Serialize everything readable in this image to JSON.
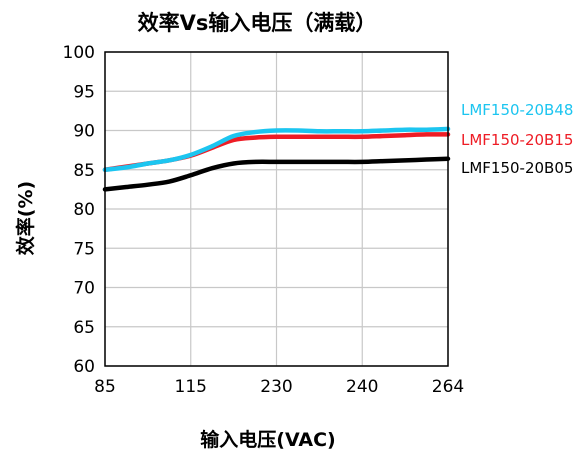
{
  "chart_data": {
    "type": "line",
    "title": "效率Vs输入电压（满载）",
    "xlabel": "输入电压(VAC)",
    "ylabel": "效率(%)",
    "categories": [
      "85",
      "115",
      "230",
      "240",
      "264"
    ],
    "ylim": [
      60,
      100
    ],
    "yticks": [
      60,
      65,
      70,
      75,
      80,
      85,
      90,
      95,
      100
    ],
    "grid": true,
    "legend_placement": "right",
    "series": [
      {
        "name": "LMF150-20B05",
        "color": "#000000",
        "x": [
          0,
          0.25,
          0.5,
          0.75,
          1,
          1.25,
          1.5,
          1.75,
          2,
          2.25,
          2.5,
          2.75,
          3,
          3.25,
          3.5,
          3.75,
          4
        ],
        "values": [
          82.5,
          82.8,
          83.1,
          83.5,
          84.3,
          85.2,
          85.8,
          86.0,
          86.0,
          86.0,
          86.0,
          86.0,
          86.0,
          86.1,
          86.2,
          86.3,
          86.4
        ]
      },
      {
        "name": "LMF150-20B15",
        "color": "#ee1c25",
        "x": [
          0,
          0.25,
          0.5,
          0.75,
          1,
          1.25,
          1.5,
          1.75,
          2,
          2.25,
          2.5,
          2.75,
          3,
          3.25,
          3.5,
          3.75,
          4
        ],
        "values": [
          85.0,
          85.4,
          85.8,
          86.2,
          86.8,
          87.8,
          88.8,
          89.1,
          89.2,
          89.2,
          89.2,
          89.2,
          89.2,
          89.3,
          89.4,
          89.5,
          89.5
        ]
      },
      {
        "name": "LMF150-20B48",
        "color": "#1cc5f0",
        "x": [
          0,
          0.25,
          0.5,
          0.75,
          1,
          1.25,
          1.5,
          1.75,
          2,
          2.25,
          2.5,
          2.75,
          3,
          3.25,
          3.5,
          3.75,
          4
        ],
        "values": [
          85.0,
          85.3,
          85.8,
          86.2,
          86.9,
          88.0,
          89.3,
          89.8,
          90.0,
          90.0,
          89.9,
          89.9,
          89.9,
          90.0,
          90.1,
          90.1,
          90.2
        ]
      }
    ],
    "legend_order": [
      "LMF150-20B48",
      "LMF150-20B15",
      "LMF150-20B05"
    ]
  }
}
